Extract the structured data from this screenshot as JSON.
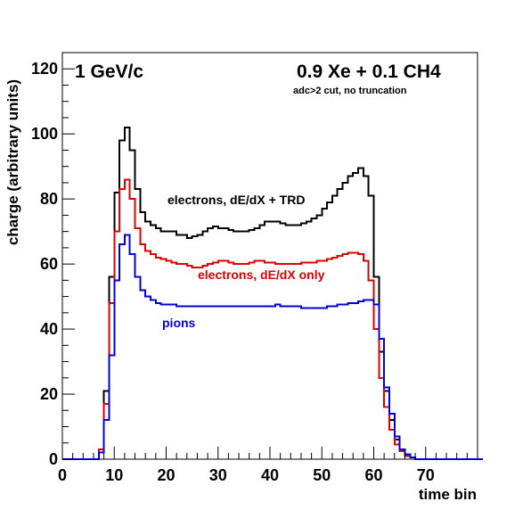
{
  "chart_data": {
    "type": "line",
    "step": true,
    "xlabel": "time bin",
    "ylabel": "charge (arbitrary units)",
    "xlim": [
      0,
      80
    ],
    "ylim": [
      0,
      125
    ],
    "xticks": [
      0,
      10,
      20,
      30,
      40,
      50,
      60,
      70
    ],
    "yticks": [
      0,
      20,
      40,
      60,
      80,
      100,
      120
    ],
    "grid": false,
    "annotations": {
      "momentum": "1 GeV/c",
      "gas": "0.9 Xe + 0.1 CH4",
      "cut": "adc>2 cut, no truncation"
    },
    "bin_edges_start": 0,
    "bin_width": 1,
    "series": [
      {
        "name": "electrons, dE/dX + TRD",
        "color": "#000000",
        "values": [
          0,
          0,
          0,
          0,
          0,
          0,
          0,
          3,
          21,
          56,
          82,
          98,
          102,
          95,
          83,
          76,
          73,
          72,
          71,
          70,
          70,
          70,
          69,
          69,
          68,
          68.5,
          69,
          70,
          71,
          71.5,
          71,
          71,
          70.5,
          70,
          70,
          70,
          70.5,
          71,
          72,
          73,
          73,
          73,
          72.5,
          72,
          72,
          72,
          72.5,
          73,
          74,
          75,
          77,
          79,
          81,
          83,
          85,
          87,
          88,
          89.5,
          87,
          81,
          56,
          33,
          21,
          12,
          6,
          3,
          1.5,
          0.5,
          0,
          0,
          0,
          0,
          0,
          0,
          0,
          0,
          0,
          0,
          0,
          0
        ]
      },
      {
        "name": "electrons, dE/dX only",
        "color": "#e00000",
        "values": [
          0,
          0,
          0,
          0,
          0,
          0,
          0,
          3,
          17,
          48,
          70,
          83,
          86,
          80,
          71,
          66,
          64,
          63,
          62,
          61.5,
          61,
          60.5,
          60,
          60,
          59.5,
          59,
          59,
          59.5,
          60,
          60.5,
          61,
          61,
          60.5,
          60,
          60,
          60,
          60.5,
          61,
          61,
          60.5,
          60.5,
          60,
          60,
          60,
          60,
          60,
          60.5,
          60.5,
          60.5,
          61,
          61,
          61.5,
          62,
          62.5,
          63,
          63.5,
          63.5,
          63,
          61,
          55,
          40,
          25,
          16,
          9,
          4.5,
          2.5,
          1,
          0.5,
          0,
          0,
          0,
          0,
          0,
          0,
          0,
          0,
          0,
          0,
          0,
          0
        ]
      },
      {
        "name": "pions",
        "color": "#0000dd",
        "values": [
          0,
          0,
          0,
          0,
          0,
          0,
          0,
          2,
          12,
          32,
          55,
          66,
          69,
          63,
          56,
          52,
          50,
          49,
          48,
          47.5,
          47.5,
          47.5,
          47,
          47,
          47,
          47,
          47,
          47,
          47,
          47,
          47,
          47,
          47,
          47,
          47,
          47,
          47,
          47,
          47,
          47,
          47,
          47.5,
          47,
          47,
          47,
          47,
          46.5,
          46.5,
          46.5,
          46.5,
          46.5,
          47,
          47,
          47.5,
          47.5,
          48,
          48,
          48.5,
          49,
          49,
          47.5,
          37,
          22,
          14,
          7,
          3,
          1.5,
          0.5,
          0,
          0,
          0,
          0,
          0,
          0,
          0,
          0,
          0,
          0,
          0,
          0,
          0
        ]
      }
    ]
  }
}
